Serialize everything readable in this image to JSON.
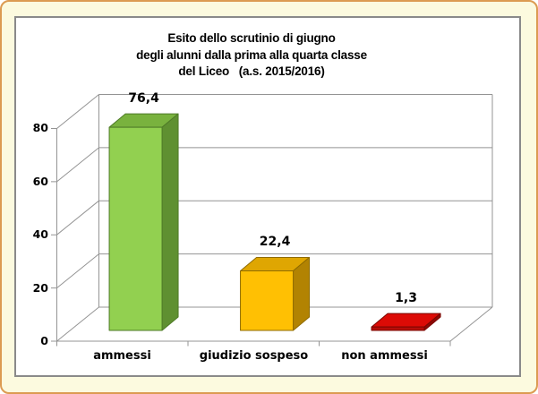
{
  "frame": {
    "background_color": "#FCFADF",
    "border_color": "#DC9B52",
    "chart_area_background": "#FFFFFF",
    "chart_area_border": "#8A8A8A"
  },
  "chart_data": {
    "type": "bar",
    "style": "3d-column",
    "title_lines": [
      "Esito dello scrutinio di giugno",
      "degli alunni dalla prima alla quarta classe",
      "del Liceo   (a.s. 2015/2016)"
    ],
    "categories": [
      "ammessi",
      "giudizio sospeso",
      "non ammessi"
    ],
    "values": [
      76.4,
      22.4,
      1.3
    ],
    "value_labels": [
      "76,4",
      "22,4",
      "1,3"
    ],
    "ylim": [
      0,
      80
    ],
    "yticks": [
      0,
      20,
      40,
      60,
      80
    ],
    "ytick_labels": [
      "0",
      "20",
      "40",
      "60",
      "80"
    ],
    "grid": true,
    "legend": "none",
    "axis_color": "#949494",
    "bar_colors": [
      {
        "name": "green",
        "front": "#92D050",
        "top": "#79B23E",
        "side": "#5F9031",
        "edge": "#4E7A27"
      },
      {
        "name": "orange",
        "front": "#FFC003",
        "top": "#DFA602",
        "side": "#B28302",
        "edge": "#8F6B00"
      },
      {
        "name": "red",
        "front": "#B60D09",
        "top": "#DC0B06",
        "side": "#8E0A06",
        "edge": "#7A0600"
      }
    ]
  }
}
